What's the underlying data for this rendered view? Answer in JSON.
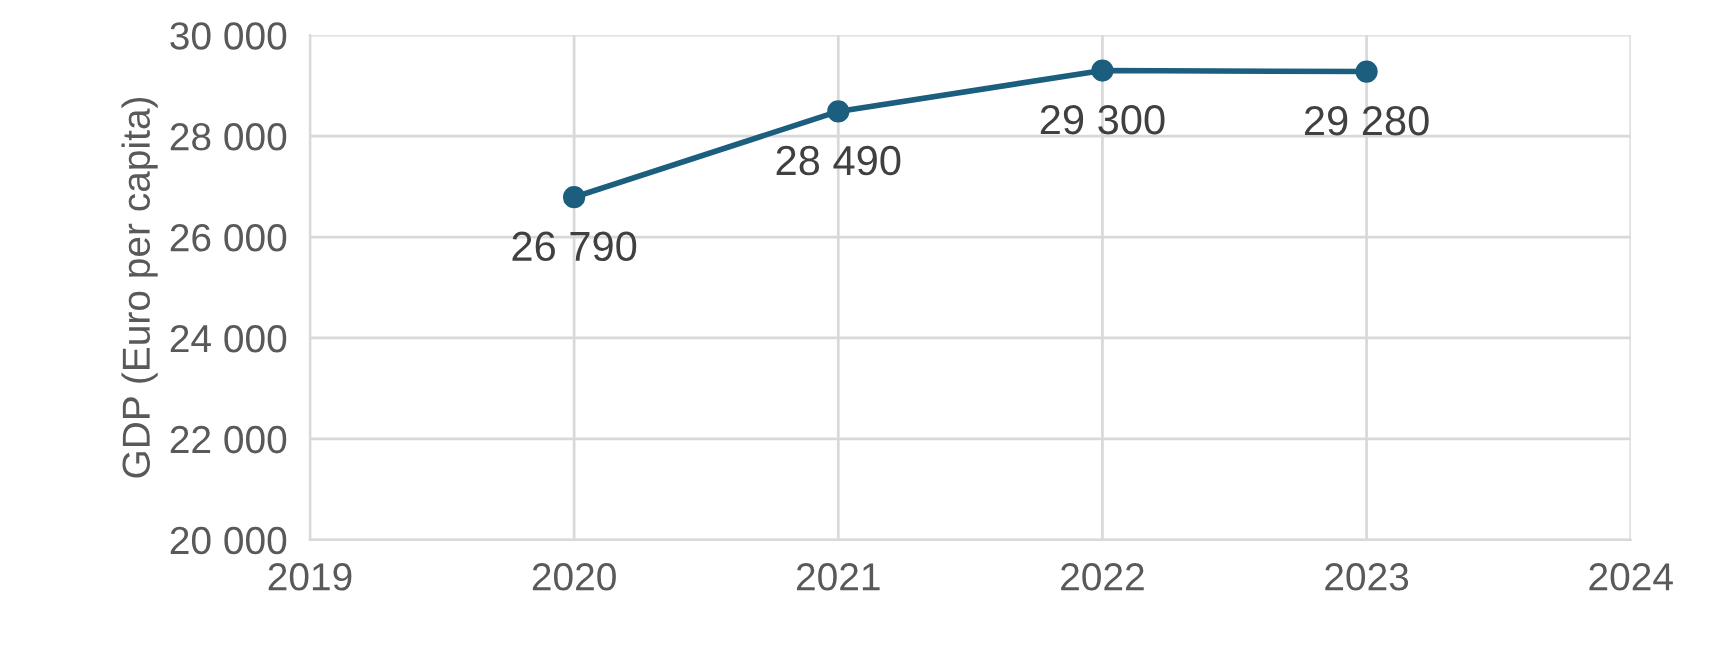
{
  "chart_data": {
    "type": "line",
    "ylabel": "GDP (Euro per capita)",
    "x": [
      2020,
      2021,
      2022,
      2023
    ],
    "series": [
      {
        "color": "#1b5e7e",
        "values": [
          26790,
          28490,
          29300,
          29280
        ],
        "value_labels": [
          "26 790",
          "28 490",
          "29 300",
          "29 280"
        ]
      }
    ],
    "xlim": [
      2019,
      2024
    ],
    "xticks": [
      2019,
      2020,
      2021,
      2022,
      2023,
      2024
    ],
    "ylim": [
      20000,
      30000
    ],
    "yticks": [
      {
        "value": 20000,
        "label": "20 000"
      },
      {
        "value": 22000,
        "label": "22 000"
      },
      {
        "value": 24000,
        "label": "24 000"
      },
      {
        "value": 26000,
        "label": "26 000"
      },
      {
        "value": 28000,
        "label": "28 000"
      },
      {
        "value": 30000,
        "label": "30 000"
      }
    ],
    "grid": true,
    "marker": "circle",
    "line_style": "solid",
    "legend": false
  }
}
